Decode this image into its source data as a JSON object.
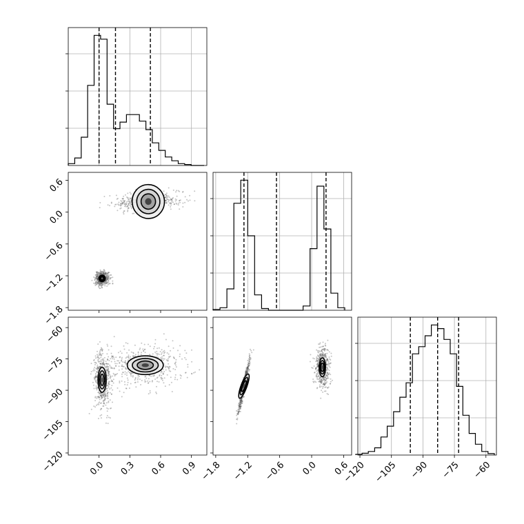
{
  "chart_data": {
    "type": "corner",
    "title": "",
    "parameters": [
      "",
      "",
      ""
    ],
    "axis_ranges": [
      [
        -0.3,
        1.05
      ],
      [
        -1.85,
        0.75
      ],
      [
        -121,
        -55
      ]
    ],
    "tick_values": [
      [
        0.0,
        0.3,
        0.6,
        0.9
      ],
      [
        -1.8,
        -1.2,
        -0.6,
        0.0,
        0.6
      ],
      [
        -120,
        -105,
        -90,
        -75,
        -60
      ]
    ],
    "tick_labels": [
      [
        "0.0",
        "0.3",
        "0.6",
        "0.9"
      ],
      [
        "−1.8",
        "−1.2",
        "−0.6",
        "0.0",
        "0.6"
      ],
      [
        "−120",
        "−105",
        "−90",
        "−75",
        "−60"
      ]
    ],
    "grid": true,
    "histograms": [
      {
        "param": 0,
        "bin_edges": [
          -0.3,
          -0.237,
          -0.174,
          -0.111,
          -0.048,
          0.015,
          0.078,
          0.141,
          0.204,
          0.267,
          0.33,
          0.393,
          0.456,
          0.519,
          0.582,
          0.645,
          0.708,
          0.771,
          0.834,
          0.897,
          0.96,
          1.023
        ],
        "counts": [
          0.02,
          0.08,
          0.3,
          0.85,
          1.38,
          1.34,
          0.65,
          0.39,
          0.46,
          0.54,
          0.54,
          0.47,
          0.38,
          0.24,
          0.16,
          0.09,
          0.05,
          0.02,
          0.01,
          0,
          0
        ],
        "quantiles": [
          0.0,
          0.16,
          0.5
        ]
      },
      {
        "param": 1,
        "bin_edges": [
          -1.85,
          -1.72,
          -1.59,
          -1.46,
          -1.33,
          -1.2,
          -1.07,
          -0.94,
          -0.81,
          -0.68,
          -0.55,
          -0.42,
          -0.29,
          -0.16,
          -0.03,
          0.1,
          0.23,
          0.36,
          0.49,
          0.62
        ],
        "counts": [
          0.01,
          0.03,
          0.25,
          1.25,
          1.52,
          0.87,
          0.18,
          0.02,
          0,
          0,
          0,
          0,
          0,
          0.05,
          0.72,
          1.45,
          0.95,
          0.2,
          0.03
        ],
        "quantiles": [
          -1.27,
          -0.66,
          0.27
        ]
      },
      {
        "param": 2,
        "bin_edges": [
          -122,
          -119,
          -116,
          -113,
          -110,
          -107,
          -104,
          -101,
          -98,
          -95,
          -92,
          -89,
          -86,
          -83,
          -80,
          -77,
          -74,
          -71,
          -68,
          -65,
          -62,
          -59,
          -56
        ],
        "counts": [
          0.002,
          0.005,
          0.01,
          0.02,
          0.05,
          0.08,
          0.12,
          0.16,
          0.2,
          0.28,
          0.3,
          0.33,
          0.36,
          0.35,
          0.32,
          0.28,
          0.19,
          0.11,
          0.06,
          0.03,
          0.01,
          0.004
        ],
        "quantiles": [
          -96,
          -83,
          -73
        ]
      }
    ],
    "scatter_2d": [
      {
        "x_param": 0,
        "y_param": 1,
        "clusters": [
          {
            "center": [
              0.03,
              -1.25
            ],
            "spread": [
              0.06,
              0.12
            ],
            "tilt": 0
          },
          {
            "center": [
              0.48,
              0.2
            ],
            "spread": [
              0.3,
              0.18
            ],
            "tilt": 0.25
          }
        ]
      },
      {
        "x_param": 0,
        "y_param": 2,
        "clusters": [
          {
            "center": [
              0.03,
              -85
            ],
            "spread": [
              0.08,
              12
            ],
            "tilt": 0
          },
          {
            "center": [
              0.45,
              -78
            ],
            "spread": [
              0.35,
              9
            ],
            "tilt": 0
          }
        ]
      },
      {
        "x_param": 1,
        "y_param": 2,
        "clusters": [
          {
            "center": [
              -1.27,
              -88
            ],
            "spread": [
              0.1,
              12
            ],
            "tilt": 0.96
          },
          {
            "center": [
              0.2,
              -79
            ],
            "spread": [
              0.12,
              9
            ],
            "tilt": 0
          }
        ]
      }
    ]
  }
}
